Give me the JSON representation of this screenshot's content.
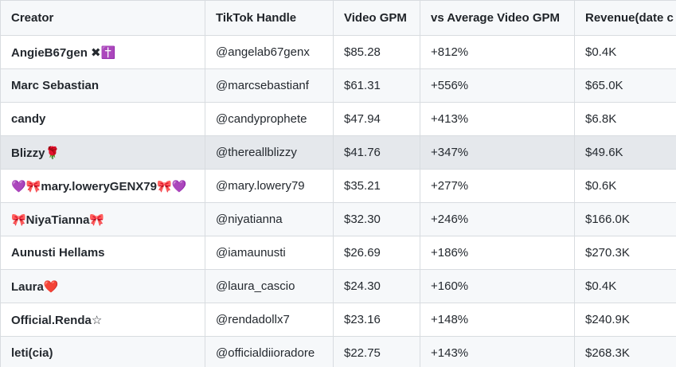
{
  "table": {
    "headers": {
      "creator": "Creator",
      "handle": "TikTok Handle",
      "gpm": "Video GPM",
      "vs": "vs Average Video GPM",
      "revenue": "Revenue(date c"
    },
    "rows": [
      {
        "creator": "AngieB67gen ✖✝️",
        "handle": "@angelab67genx",
        "gpm": "$85.28",
        "vs": "+812%",
        "revenue": "$0.4K"
      },
      {
        "creator": "Marc Sebastian",
        "handle": "@marcsebastianf",
        "gpm": "$61.31",
        "vs": "+556%",
        "revenue": "$65.0K"
      },
      {
        "creator": "candy",
        "handle": "@candyprophete",
        "gpm": "$47.94",
        "vs": "+413%",
        "revenue": "$6.8K"
      },
      {
        "creator": "Blizzy🌹",
        "handle": "@thereallblizzy",
        "gpm": "$41.76",
        "vs": "+347%",
        "revenue": "$49.6K"
      },
      {
        "creator": "💜🎀mary.loweryGENX79🎀💜",
        "handle": "@mary.lowery79",
        "gpm": "$35.21",
        "vs": "+277%",
        "revenue": "$0.6K"
      },
      {
        "creator": "🎀NiyaTianna🎀",
        "handle": "@niyatianna",
        "gpm": "$32.30",
        "vs": "+246%",
        "revenue": "$166.0K"
      },
      {
        "creator": "Aunusti Hellams",
        "handle": "@iamaunusti",
        "gpm": "$26.69",
        "vs": "+186%",
        "revenue": "$270.3K"
      },
      {
        "creator": "Laura❤️",
        "handle": "@laura_cascio",
        "gpm": "$24.30",
        "vs": "+160%",
        "revenue": "$0.4K"
      },
      {
        "creator": "Official.Renda☆",
        "handle": "@rendadollx7",
        "gpm": "$23.16",
        "vs": "+148%",
        "revenue": "$240.9K"
      },
      {
        "creator": "leti(cia)",
        "handle": "@officialdiioradore",
        "gpm": "$22.75",
        "vs": "+143%",
        "revenue": "$268.3K"
      }
    ]
  }
}
